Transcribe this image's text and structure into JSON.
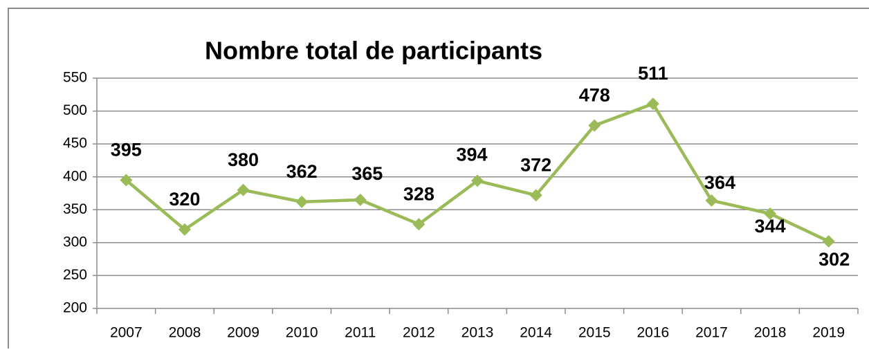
{
  "chart_data": {
    "type": "line",
    "title": "Nombre total de participants",
    "categories": [
      "2007",
      "2008",
      "2009",
      "2010",
      "2011",
      "2012",
      "2013",
      "2014",
      "2015",
      "2016",
      "2017",
      "2018",
      "2019"
    ],
    "values": [
      395,
      320,
      380,
      362,
      365,
      328,
      394,
      372,
      478,
      511,
      364,
      344,
      302
    ],
    "color": "#9bbb59",
    "ylim": [
      200,
      550
    ],
    "yticks": [
      200,
      250,
      300,
      350,
      400,
      450,
      500,
      550
    ],
    "grid": true
  }
}
